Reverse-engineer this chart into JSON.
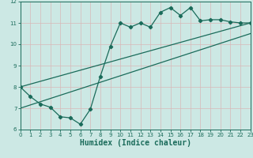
{
  "xlabel": "Humidex (Indice chaleur)",
  "xlim": [
    0,
    23
  ],
  "ylim": [
    6,
    12
  ],
  "xticks": [
    0,
    1,
    2,
    3,
    4,
    5,
    6,
    7,
    8,
    9,
    10,
    11,
    12,
    13,
    14,
    15,
    16,
    17,
    18,
    19,
    20,
    21,
    22,
    23
  ],
  "yticks": [
    6,
    7,
    8,
    9,
    10,
    11,
    12
  ],
  "bg_color": "#cce8e4",
  "grid_color": "#b8d4d0",
  "line_color": "#1a6b5a",
  "line1_x": [
    0,
    1,
    2,
    3,
    4,
    5,
    6,
    7,
    8,
    9,
    10,
    11,
    12,
    13,
    14,
    15,
    16,
    17,
    18,
    19,
    20,
    21,
    22,
    23
  ],
  "line1_y": [
    8.0,
    7.55,
    7.2,
    7.05,
    6.6,
    6.55,
    6.25,
    6.95,
    8.5,
    9.9,
    11.0,
    10.8,
    11.0,
    10.8,
    11.5,
    11.72,
    11.35,
    11.72,
    11.1,
    11.15,
    11.15,
    11.05,
    11.0,
    11.0
  ],
  "line2_x": [
    0,
    23
  ],
  "line2_y": [
    8.0,
    11.0
  ],
  "line3_x": [
    0,
    23
  ],
  "line3_y": [
    7.0,
    10.5
  ],
  "tick_fontsize": 5.0,
  "xlabel_fontsize": 7.0,
  "linewidth": 0.9,
  "markersize": 2.2
}
